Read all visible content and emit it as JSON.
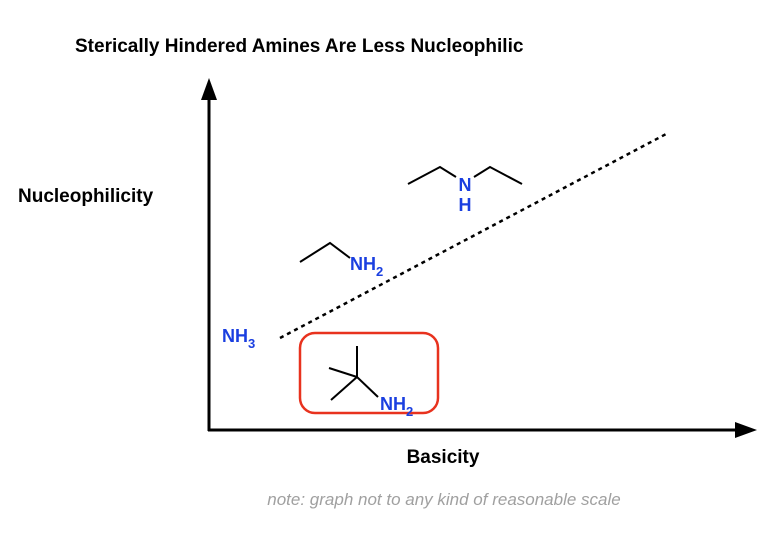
{
  "title": "Sterically Hindered Amines Are Less Nucleophilic",
  "y_axis_label": "Nucleophilicity",
  "x_axis_label": "Basicity",
  "molecules": {
    "ammonia": {
      "main": "NH",
      "sub": "3"
    },
    "ethylamine": {
      "main": "NH",
      "sub": "2"
    },
    "diethylamine": {
      "n": "N",
      "h": "H"
    },
    "tert_butylamine": {
      "main": "NH",
      "sub": "2"
    }
  },
  "note": "note: graph not to any kind of reasonable scale"
}
